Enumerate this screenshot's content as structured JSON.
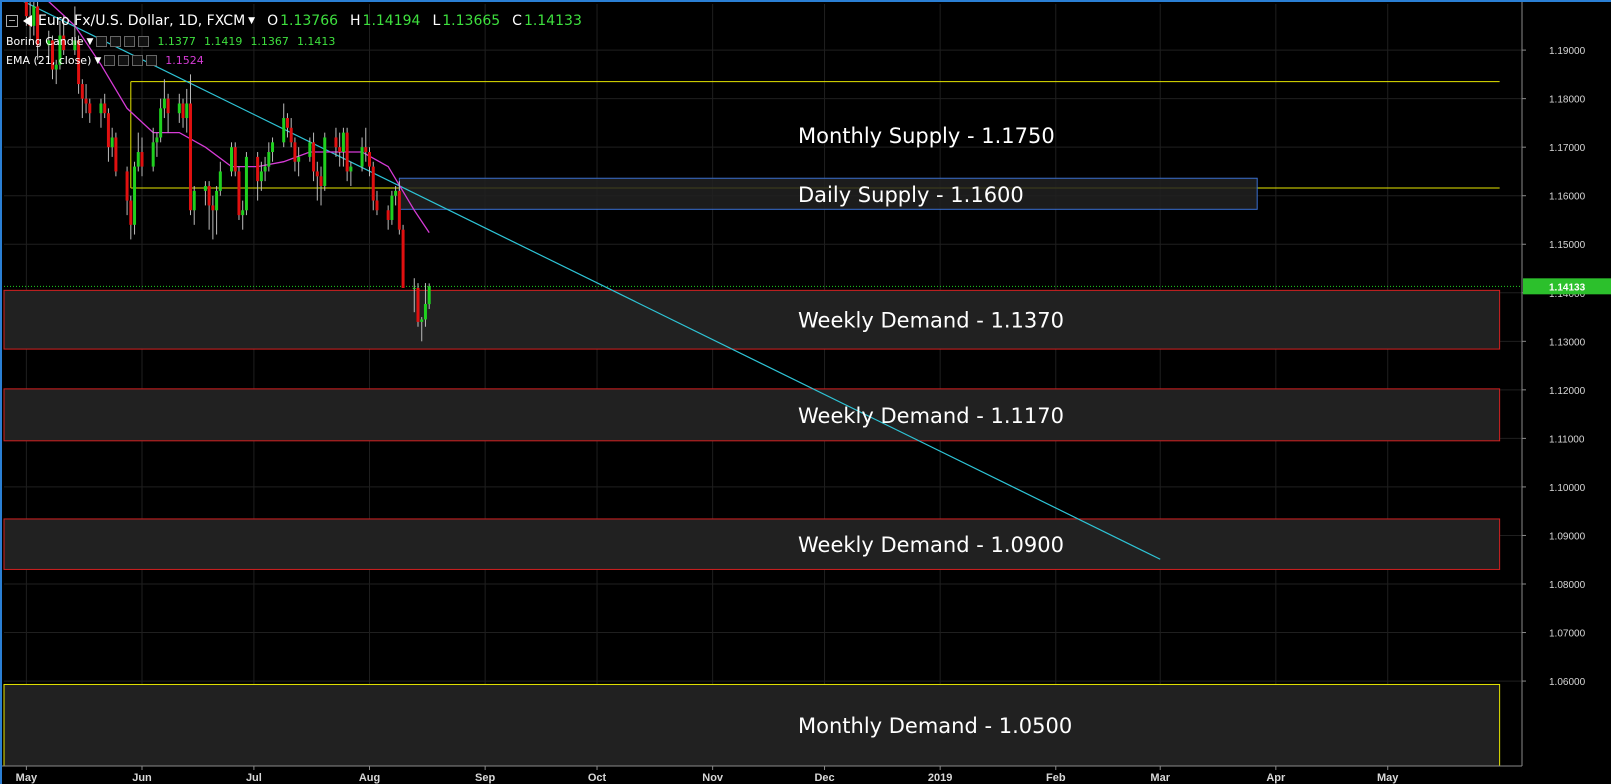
{
  "header": {
    "symbol": "Euro Fx/U.S. Dollar, 1D, FXCM",
    "ohlc": [
      {
        "key": "O",
        "value": "1.13766"
      },
      {
        "key": "H",
        "value": "1.14194"
      },
      {
        "key": "L",
        "value": "1.13665"
      },
      {
        "key": "C",
        "value": "1.14133"
      }
    ]
  },
  "indicators": [
    {
      "name": "Boring Candle",
      "values": [
        "1.1377",
        "1.1419",
        "1.1367",
        "1.1413"
      ],
      "color": "#3ee03e"
    },
    {
      "name": "EMA (21, close)",
      "values": [
        "1.1524"
      ],
      "color": "#d63bd6"
    }
  ],
  "colors": {
    "background": "#000000",
    "bull_candle": "#1fd01f",
    "bear_candle": "#e01010",
    "ema_line": "#d63bd6",
    "trend_line": "#2ec4d6",
    "demand_zone_border": "#d32020",
    "supply_zone_border": "#e6e600",
    "daily_supply_border": "#3a6fd0",
    "zone_fill": "#212121",
    "price_label_bg": "#2cc02c",
    "wick": "#bbbbbb"
  },
  "chart_data": {
    "type": "candlestick",
    "symbol": "EURUSD",
    "timeframe": "1D",
    "ylim": [
      1.0425,
      1.1995
    ],
    "y_ticks": [
      {
        "value": 1.19,
        "label": "1.19000"
      },
      {
        "value": 1.18,
        "label": "1.18000"
      },
      {
        "value": 1.17,
        "label": "1.17000"
      },
      {
        "value": 1.16,
        "label": "1.16000"
      },
      {
        "value": 1.15,
        "label": "1.15000"
      },
      {
        "value": 1.14,
        "label": "1.14000"
      },
      {
        "value": 1.13,
        "label": "1.13000"
      },
      {
        "value": 1.12,
        "label": "1.12000"
      },
      {
        "value": 1.11,
        "label": "1.11000"
      },
      {
        "value": 1.1,
        "label": "1.10000"
      },
      {
        "value": 1.09,
        "label": "1.09000"
      },
      {
        "value": 1.08,
        "label": "1.08000"
      },
      {
        "value": 1.07,
        "label": "1.07000"
      },
      {
        "value": 1.06,
        "label": "1.06000"
      }
    ],
    "x_range": [
      "2018-04-25",
      "2019-06-06"
    ],
    "x_ticks": [
      {
        "date": "2018-05-01",
        "label": "May"
      },
      {
        "date": "2018-06-01",
        "label": "Jun"
      },
      {
        "date": "2018-07-01",
        "label": "Jul"
      },
      {
        "date": "2018-08-01",
        "label": "Aug"
      },
      {
        "date": "2018-09-01",
        "label": "Sep"
      },
      {
        "date": "2018-10-01",
        "label": "Oct"
      },
      {
        "date": "2018-11-01",
        "label": "Nov"
      },
      {
        "date": "2018-12-01",
        "label": "Dec"
      },
      {
        "date": "2019-01-01",
        "label": "2019"
      },
      {
        "date": "2019-02-01",
        "label": "Feb"
      },
      {
        "date": "2019-03-01",
        "label": "Mar"
      },
      {
        "date": "2019-04-01",
        "label": "Apr"
      },
      {
        "date": "2019-05-01",
        "label": "May"
      }
    ],
    "current_price": {
      "value": 1.14133,
      "label": "1.14133"
    },
    "zones": [
      {
        "label": "Monthly Supply - 1.1750",
        "kind": "monthly-supply",
        "top": 1.1835,
        "bottom": 1.1616,
        "start": "2018-05-29",
        "end": "2019-05-31"
      },
      {
        "label": "Daily Supply - 1.1600",
        "kind": "daily-supply",
        "top": 1.1636,
        "bottom": 1.1572,
        "start": "2018-08-09",
        "end": "2019-03-27"
      },
      {
        "label": "Weekly Demand - 1.1370",
        "kind": "weekly-demand",
        "top": 1.1405,
        "bottom": 1.1284,
        "start": "2018-04-25",
        "end": "2019-05-31"
      },
      {
        "label": "Weekly Demand - 1.1170",
        "kind": "weekly-demand",
        "top": 1.1202,
        "bottom": 1.1095,
        "start": "2018-04-25",
        "end": "2019-05-31"
      },
      {
        "label": "Weekly Demand - 1.0900",
        "kind": "weekly-demand",
        "top": 1.0934,
        "bottom": 1.083,
        "start": "2018-04-25",
        "end": "2019-05-31"
      },
      {
        "label": "Monthly Demand - 1.0500",
        "kind": "monthly-demand",
        "top": 1.0593,
        "bottom": 1.0425,
        "start": "2018-04-25",
        "end": "2019-05-31"
      }
    ],
    "trendline": {
      "start": {
        "date": "2018-04-29",
        "value": 1.2005
      },
      "end": {
        "date": "2019-03-01",
        "value": 1.0851
      }
    },
    "candles": [
      {
        "date": "2018-05-01",
        "open": 1.2,
        "high": 1.202,
        "low": 1.195,
        "close": 1.197
      },
      {
        "date": "2018-05-02",
        "open": 1.197,
        "high": 1.2,
        "low": 1.192,
        "close": 1.195
      },
      {
        "date": "2018-05-03",
        "open": 1.195,
        "high": 1.201,
        "low": 1.193,
        "close": 1.199
      },
      {
        "date": "2018-05-04",
        "open": 1.199,
        "high": 1.2,
        "low": 1.188,
        "close": 1.191
      },
      {
        "date": "2018-05-07",
        "open": 1.191,
        "high": 1.194,
        "low": 1.188,
        "close": 1.192
      },
      {
        "date": "2018-05-08",
        "open": 1.192,
        "high": 1.193,
        "low": 1.184,
        "close": 1.186
      },
      {
        "date": "2018-05-09",
        "open": 1.186,
        "high": 1.188,
        "low": 1.183,
        "close": 1.187
      },
      {
        "date": "2018-05-10",
        "open": 1.187,
        "high": 1.196,
        "low": 1.186,
        "close": 1.193
      },
      {
        "date": "2018-05-11",
        "open": 1.193,
        "high": 1.197,
        "low": 1.189,
        "close": 1.19
      },
      {
        "date": "2018-05-14",
        "open": 1.19,
        "high": 1.199,
        "low": 1.189,
        "close": 1.192
      },
      {
        "date": "2018-05-15",
        "open": 1.192,
        "high": 1.193,
        "low": 1.181,
        "close": 1.183
      },
      {
        "date": "2018-05-16",
        "open": 1.183,
        "high": 1.184,
        "low": 1.176,
        "close": 1.18
      },
      {
        "date": "2018-05-17",
        "open": 1.18,
        "high": 1.183,
        "low": 1.177,
        "close": 1.179
      },
      {
        "date": "2018-05-18",
        "open": 1.179,
        "high": 1.18,
        "low": 1.175,
        "close": 1.177
      },
      {
        "date": "2018-05-21",
        "open": 1.177,
        "high": 1.18,
        "low": 1.174,
        "close": 1.179
      },
      {
        "date": "2018-05-22",
        "open": 1.179,
        "high": 1.181,
        "low": 1.176,
        "close": 1.177
      },
      {
        "date": "2018-05-23",
        "open": 1.177,
        "high": 1.178,
        "low": 1.167,
        "close": 1.17
      },
      {
        "date": "2018-05-24",
        "open": 1.17,
        "high": 1.174,
        "low": 1.168,
        "close": 1.172
      },
      {
        "date": "2018-05-25",
        "open": 1.172,
        "high": 1.173,
        "low": 1.164,
        "close": 1.165
      },
      {
        "date": "2018-05-28",
        "open": 1.165,
        "high": 1.166,
        "low": 1.156,
        "close": 1.159
      },
      {
        "date": "2018-05-29",
        "open": 1.159,
        "high": 1.16,
        "low": 1.151,
        "close": 1.154
      },
      {
        "date": "2018-05-30",
        "open": 1.154,
        "high": 1.167,
        "low": 1.152,
        "close": 1.166
      },
      {
        "date": "2018-05-31",
        "open": 1.166,
        "high": 1.173,
        "low": 1.165,
        "close": 1.169
      },
      {
        "date": "2018-06-01",
        "open": 1.169,
        "high": 1.172,
        "low": 1.164,
        "close": 1.166
      },
      {
        "date": "2018-06-04",
        "open": 1.166,
        "high": 1.174,
        "low": 1.165,
        "close": 1.171
      },
      {
        "date": "2018-06-05",
        "open": 1.171,
        "high": 1.173,
        "low": 1.168,
        "close": 1.172
      },
      {
        "date": "2018-06-06",
        "open": 1.172,
        "high": 1.18,
        "low": 1.171,
        "close": 1.178
      },
      {
        "date": "2018-06-07",
        "open": 1.178,
        "high": 1.184,
        "low": 1.176,
        "close": 1.18
      },
      {
        "date": "2018-06-08",
        "open": 1.18,
        "high": 1.181,
        "low": 1.173,
        "close": 1.177
      },
      {
        "date": "2018-06-11",
        "open": 1.177,
        "high": 1.181,
        "low": 1.175,
        "close": 1.179
      },
      {
        "date": "2018-06-12",
        "open": 1.179,
        "high": 1.18,
        "low": 1.174,
        "close": 1.176
      },
      {
        "date": "2018-06-13",
        "open": 1.176,
        "high": 1.182,
        "low": 1.173,
        "close": 1.179
      },
      {
        "date": "2018-06-14",
        "open": 1.179,
        "high": 1.185,
        "low": 1.156,
        "close": 1.157
      },
      {
        "date": "2018-06-15",
        "open": 1.157,
        "high": 1.162,
        "low": 1.154,
        "close": 1.161
      },
      {
        "date": "2018-06-18",
        "open": 1.161,
        "high": 1.163,
        "low": 1.158,
        "close": 1.162
      },
      {
        "date": "2018-06-19",
        "open": 1.162,
        "high": 1.163,
        "low": 1.153,
        "close": 1.158
      },
      {
        "date": "2018-06-20",
        "open": 1.158,
        "high": 1.16,
        "low": 1.151,
        "close": 1.157
      },
      {
        "date": "2018-06-21",
        "open": 1.157,
        "high": 1.162,
        "low": 1.152,
        "close": 1.161
      },
      {
        "date": "2018-06-22",
        "open": 1.161,
        "high": 1.167,
        "low": 1.16,
        "close": 1.165
      },
      {
        "date": "2018-06-25",
        "open": 1.165,
        "high": 1.171,
        "low": 1.164,
        "close": 1.17
      },
      {
        "date": "2018-06-26",
        "open": 1.17,
        "high": 1.171,
        "low": 1.164,
        "close": 1.165
      },
      {
        "date": "2018-06-27",
        "open": 1.165,
        "high": 1.166,
        "low": 1.155,
        "close": 1.156
      },
      {
        "date": "2018-06-28",
        "open": 1.156,
        "high": 1.159,
        "low": 1.153,
        "close": 1.157
      },
      {
        "date": "2018-06-29",
        "open": 1.157,
        "high": 1.169,
        "low": 1.156,
        "close": 1.168
      },
      {
        "date": "2018-07-02",
        "open": 1.168,
        "high": 1.169,
        "low": 1.159,
        "close": 1.163
      },
      {
        "date": "2018-07-03",
        "open": 1.163,
        "high": 1.167,
        "low": 1.161,
        "close": 1.165
      },
      {
        "date": "2018-07-04",
        "open": 1.165,
        "high": 1.168,
        "low": 1.163,
        "close": 1.166
      },
      {
        "date": "2018-07-05",
        "open": 1.166,
        "high": 1.171,
        "low": 1.165,
        "close": 1.169
      },
      {
        "date": "2018-07-06",
        "open": 1.169,
        "high": 1.172,
        "low": 1.167,
        "close": 1.171
      },
      {
        "date": "2018-07-09",
        "open": 1.171,
        "high": 1.179,
        "low": 1.17,
        "close": 1.176
      },
      {
        "date": "2018-07-10",
        "open": 1.176,
        "high": 1.177,
        "low": 1.172,
        "close": 1.174
      },
      {
        "date": "2018-07-11",
        "open": 1.174,
        "high": 1.176,
        "low": 1.17,
        "close": 1.171
      },
      {
        "date": "2018-07-12",
        "open": 1.171,
        "high": 1.172,
        "low": 1.165,
        "close": 1.167
      },
      {
        "date": "2018-07-13",
        "open": 1.167,
        "high": 1.17,
        "low": 1.164,
        "close": 1.168
      },
      {
        "date": "2018-07-16",
        "open": 1.168,
        "high": 1.172,
        "low": 1.167,
        "close": 1.171
      },
      {
        "date": "2018-07-17",
        "open": 1.171,
        "high": 1.173,
        "low": 1.163,
        "close": 1.165
      },
      {
        "date": "2018-07-18",
        "open": 1.165,
        "high": 1.167,
        "low": 1.159,
        "close": 1.164
      },
      {
        "date": "2018-07-19",
        "open": 1.164,
        "high": 1.166,
        "low": 1.158,
        "close": 1.162
      },
      {
        "date": "2018-07-20",
        "open": 1.162,
        "high": 1.173,
        "low": 1.161,
        "close": 1.172
      },
      {
        "date": "2018-07-23",
        "open": 1.172,
        "high": 1.174,
        "low": 1.168,
        "close": 1.17
      },
      {
        "date": "2018-07-24",
        "open": 1.17,
        "high": 1.173,
        "low": 1.166,
        "close": 1.169
      },
      {
        "date": "2018-07-25",
        "open": 1.169,
        "high": 1.174,
        "low": 1.166,
        "close": 1.173
      },
      {
        "date": "2018-07-26",
        "open": 1.173,
        "high": 1.174,
        "low": 1.163,
        "close": 1.165
      },
      {
        "date": "2018-07-27",
        "open": 1.165,
        "high": 1.167,
        "low": 1.162,
        "close": 1.166
      },
      {
        "date": "2018-07-30",
        "open": 1.166,
        "high": 1.172,
        "low": 1.165,
        "close": 1.17
      },
      {
        "date": "2018-07-31",
        "open": 1.17,
        "high": 1.174,
        "low": 1.167,
        "close": 1.169
      },
      {
        "date": "2018-08-01",
        "open": 1.169,
        "high": 1.17,
        "low": 1.164,
        "close": 1.166
      },
      {
        "date": "2018-08-02",
        "open": 1.166,
        "high": 1.167,
        "low": 1.157,
        "close": 1.159
      },
      {
        "date": "2018-08-03",
        "open": 1.159,
        "high": 1.161,
        "low": 1.156,
        "close": 1.157
      },
      {
        "date": "2018-08-06",
        "open": 1.157,
        "high": 1.158,
        "low": 1.153,
        "close": 1.155
      },
      {
        "date": "2018-08-07",
        "open": 1.155,
        "high": 1.161,
        "low": 1.154,
        "close": 1.16
      },
      {
        "date": "2018-08-08",
        "open": 1.16,
        "high": 1.162,
        "low": 1.158,
        "close": 1.161
      },
      {
        "date": "2018-08-09",
        "open": 1.161,
        "high": 1.163,
        "low": 1.152,
        "close": 1.153
      },
      {
        "date": "2018-08-10",
        "open": 1.153,
        "high": 1.154,
        "low": 1.141,
        "close": 1.141
      },
      {
        "date": "2018-08-13",
        "open": 1.141,
        "high": 1.143,
        "low": 1.136,
        "close": 1.141
      },
      {
        "date": "2018-08-14",
        "open": 1.141,
        "high": 1.142,
        "low": 1.133,
        "close": 1.134
      },
      {
        "date": "2018-08-15",
        "open": 1.134,
        "high": 1.135,
        "low": 1.13,
        "close": 1.1345
      },
      {
        "date": "2018-08-16",
        "open": 1.1345,
        "high": 1.142,
        "low": 1.133,
        "close": 1.1377
      },
      {
        "date": "2018-08-17",
        "open": 1.13766,
        "high": 1.14194,
        "low": 1.13665,
        "close": 1.14133
      }
    ],
    "ema_21": [
      {
        "date": "2018-05-07",
        "value": 1.2
      },
      {
        "date": "2018-05-14",
        "value": 1.195
      },
      {
        "date": "2018-05-21",
        "value": 1.187
      },
      {
        "date": "2018-05-28",
        "value": 1.178
      },
      {
        "date": "2018-06-04",
        "value": 1.173
      },
      {
        "date": "2018-06-11",
        "value": 1.173
      },
      {
        "date": "2018-06-18",
        "value": 1.17
      },
      {
        "date": "2018-06-25",
        "value": 1.166
      },
      {
        "date": "2018-07-02",
        "value": 1.166
      },
      {
        "date": "2018-07-09",
        "value": 1.167
      },
      {
        "date": "2018-07-16",
        "value": 1.169
      },
      {
        "date": "2018-07-23",
        "value": 1.169
      },
      {
        "date": "2018-07-30",
        "value": 1.169
      },
      {
        "date": "2018-08-06",
        "value": 1.166
      },
      {
        "date": "2018-08-13",
        "value": 1.157
      },
      {
        "date": "2018-08-17",
        "value": 1.1524
      }
    ]
  }
}
